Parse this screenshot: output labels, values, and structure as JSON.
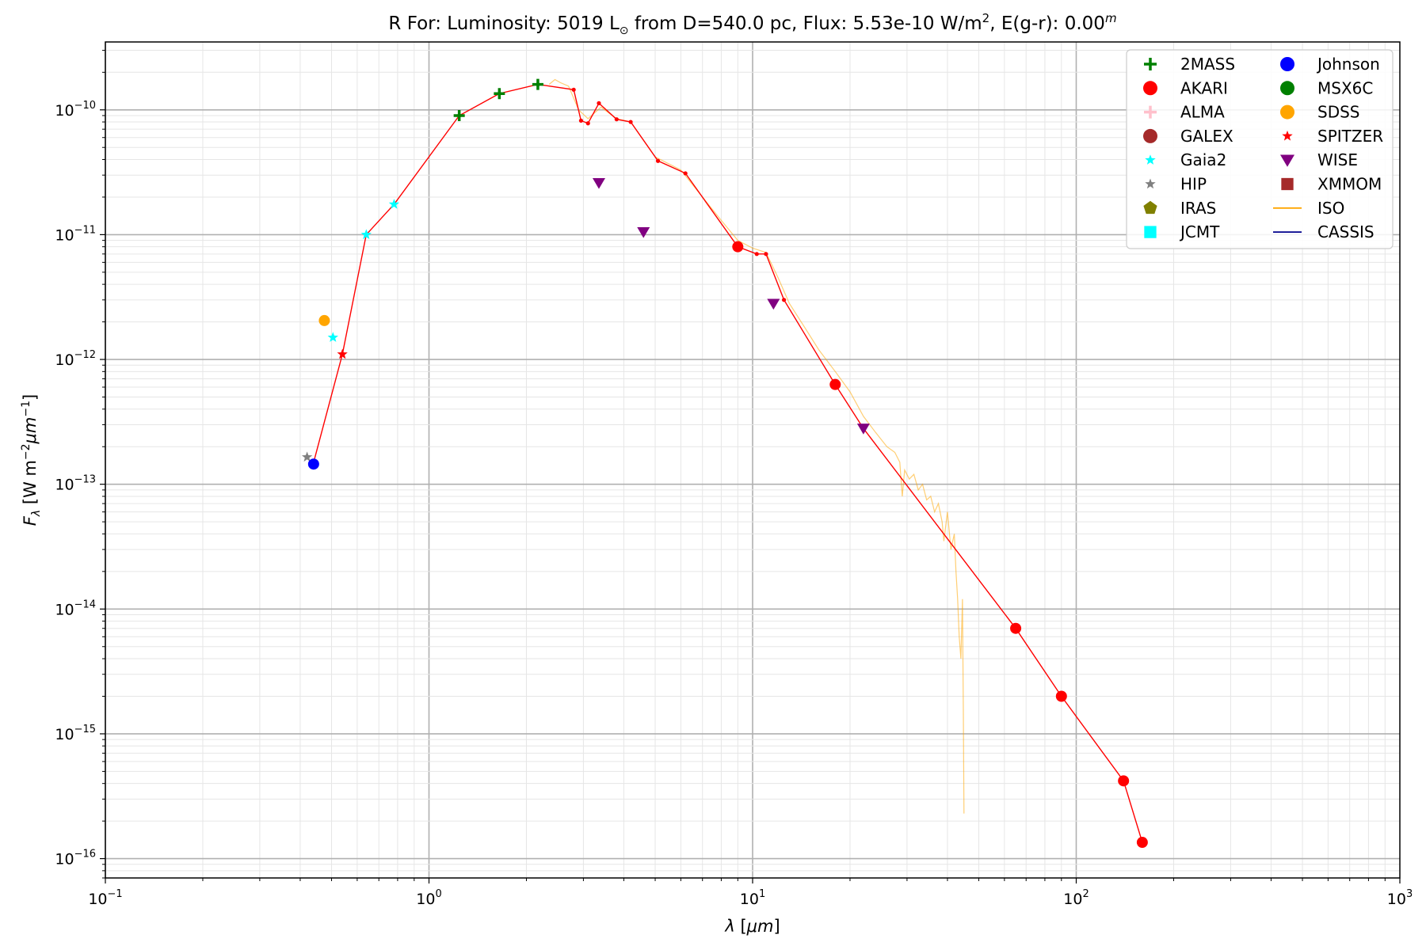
{
  "chart_data": {
    "type": "scatter",
    "title": {
      "prefix": "R For:  Luminosity: 5019 L",
      "sun_symbol": "⊙",
      "middle": " from D=540.0 pc, Flux: 5.53e-10 W/m",
      "flux_exp": "2",
      "suffix": ", E(g-r): 0.00",
      "mag_sup": "m"
    },
    "xlabel": {
      "main": "λ [",
      "unit": "μm",
      "close": "]"
    },
    "ylabel": {
      "main": "F",
      "sub": "λ",
      "unit_a": " [W m",
      "exp_a": "−2",
      "unit_b": "μm",
      "exp_b": "−1",
      "close": "]"
    },
    "x_scale": "log",
    "y_scale": "log",
    "xlim": [
      0.1,
      1000
    ],
    "ylim": [
      7e-17,
      3.5e-10
    ],
    "x_ticks": [
      {
        "value": 0.1,
        "base": "10",
        "exp": "−1"
      },
      {
        "value": 1,
        "base": "10",
        "exp": "0"
      },
      {
        "value": 10,
        "base": "10",
        "exp": "1"
      },
      {
        "value": 100,
        "base": "10",
        "exp": "2"
      },
      {
        "value": 1000,
        "base": "10",
        "exp": "3"
      }
    ],
    "y_ticks": [
      {
        "value": 1e-16,
        "base": "10",
        "exp": "−16"
      },
      {
        "value": 1e-15,
        "base": "10",
        "exp": "−15"
      },
      {
        "value": 1e-14,
        "base": "10",
        "exp": "−14"
      },
      {
        "value": 1e-13,
        "base": "10",
        "exp": "−13"
      },
      {
        "value": 1e-12,
        "base": "10",
        "exp": "−12"
      },
      {
        "value": 1e-11,
        "base": "10",
        "exp": "−11"
      },
      {
        "value": 1e-10,
        "base": "10",
        "exp": "−10"
      }
    ],
    "grid": true,
    "legend_placement": "top-right",
    "legend": [
      {
        "label": "2MASS",
        "marker": "plus",
        "color": "#008000"
      },
      {
        "label": "AKARI",
        "marker": "circle",
        "color": "#ff0000"
      },
      {
        "label": "ALMA",
        "marker": "plus",
        "color": "#ffc0cb"
      },
      {
        "label": "GALEX",
        "marker": "circle",
        "color": "#a52a2a"
      },
      {
        "label": "Gaia2",
        "marker": "star",
        "color": "#00ffff"
      },
      {
        "label": "HIP",
        "marker": "star",
        "color": "#808080"
      },
      {
        "label": "IRAS",
        "marker": "pentagon",
        "color": "#808000"
      },
      {
        "label": "JCMT",
        "marker": "square",
        "color": "#00ffff"
      },
      {
        "label": "Johnson",
        "marker": "circle",
        "color": "#0000ff"
      },
      {
        "label": "MSX6C",
        "marker": "circle",
        "color": "#008000"
      },
      {
        "label": "SDSS",
        "marker": "circle",
        "color": "#ffa500"
      },
      {
        "label": "SPITZER",
        "marker": "star",
        "color": "#ff0000"
      },
      {
        "label": "WISE",
        "marker": "triangle-down",
        "color": "#800080"
      },
      {
        "label": "XMMOM",
        "marker": "square",
        "color": "#a52a2a"
      },
      {
        "label": "ISO",
        "marker": "line",
        "color": "#ffa500"
      },
      {
        "label": "CASSIS",
        "marker": "line",
        "color": "#00008b"
      }
    ],
    "model": {
      "color": "#ff0000",
      "points": [
        [
          0.44,
          1.5e-13
        ],
        [
          0.54,
          1.1e-12
        ],
        [
          0.64,
          1e-11
        ],
        [
          0.78,
          1.75e-11
        ],
        [
          1.24,
          9e-11
        ],
        [
          1.65,
          1.35e-10
        ],
        [
          2.17,
          1.6e-10
        ],
        [
          2.8,
          1.45e-10
        ],
        [
          2.95,
          8.2e-11
        ],
        [
          3.1,
          7.8e-11
        ],
        [
          3.35,
          1.13e-10
        ],
        [
          3.8,
          8.4e-11
        ],
        [
          4.2,
          8e-11
        ],
        [
          5.1,
          3.9e-11
        ],
        [
          6.2,
          3.1e-11
        ],
        [
          9.0,
          8e-12
        ],
        [
          10.3,
          7e-12
        ],
        [
          11.0,
          7e-12
        ],
        [
          12.5,
          3e-12
        ],
        [
          18.0,
          6.3e-13
        ],
        [
          22.0,
          2.8e-13
        ],
        [
          65.0,
          7e-15
        ],
        [
          90.0,
          2e-15
        ],
        [
          140.0,
          4.2e-16
        ],
        [
          160.0,
          1.35e-16
        ]
      ]
    },
    "series": [
      {
        "name": "2MASS",
        "marker": "plus",
        "color": "#008000",
        "points": [
          [
            1.24,
            9e-11
          ],
          [
            1.65,
            1.35e-10
          ],
          [
            2.17,
            1.6e-10
          ]
        ]
      },
      {
        "name": "AKARI",
        "marker": "circle",
        "color": "#ff0000",
        "points": [
          [
            9.0,
            8e-12
          ],
          [
            18.0,
            6.3e-13
          ],
          [
            65.0,
            7e-15
          ],
          [
            90.0,
            2e-15
          ],
          [
            140.0,
            4.2e-16
          ],
          [
            160.0,
            1.35e-16
          ]
        ]
      },
      {
        "name": "Gaia2",
        "marker": "star",
        "color": "#00ffff",
        "points": [
          [
            0.505,
            1.5e-12
          ],
          [
            0.64,
            1e-11
          ],
          [
            0.78,
            1.75e-11
          ]
        ]
      },
      {
        "name": "HIP",
        "marker": "star",
        "color": "#808080",
        "points": [
          [
            0.42,
            1.65e-13
          ]
        ]
      },
      {
        "name": "Johnson",
        "marker": "circle",
        "color": "#0000ff",
        "points": [
          [
            0.44,
            1.45e-13
          ]
        ]
      },
      {
        "name": "SDSS",
        "marker": "circle",
        "color": "#ffa500",
        "points": [
          [
            0.475,
            2.05e-12
          ]
        ]
      },
      {
        "name": "SPITZER",
        "marker": "star",
        "color": "#ff0000",
        "points": [
          [
            0.54,
            1.1e-12
          ]
        ]
      },
      {
        "name": "WISE",
        "marker": "triangle-down",
        "color": "#800080",
        "points": [
          [
            3.35,
            2.6e-11
          ],
          [
            4.6,
            1.05e-11
          ],
          [
            11.6,
            2.8e-12
          ],
          [
            22.0,
            2.8e-13
          ]
        ]
      }
    ],
    "iso": {
      "name": "ISO",
      "color": "#ffa500",
      "points": [
        [
          2.35,
          1.6e-10
        ],
        [
          2.45,
          1.75e-10
        ],
        [
          2.55,
          1.65e-10
        ],
        [
          2.7,
          1.55e-10
        ],
        [
          2.9,
          1e-10
        ],
        [
          3.1,
          8.5e-11
        ],
        [
          3.4,
          1.05e-10
        ],
        [
          3.8,
          8.5e-11
        ],
        [
          4.2,
          8e-11
        ],
        [
          5.0,
          4.2e-11
        ],
        [
          6.0,
          3.3e-11
        ],
        [
          7.0,
          2e-11
        ],
        [
          8.0,
          1.3e-11
        ],
        [
          9.0,
          9e-12
        ],
        [
          10.0,
          7.8e-12
        ],
        [
          11.0,
          7.2e-12
        ],
        [
          12.0,
          4.5e-12
        ],
        [
          13.0,
          2.8e-12
        ],
        [
          14.5,
          1.8e-12
        ],
        [
          16.0,
          1.2e-12
        ],
        [
          18.0,
          8e-13
        ],
        [
          20.0,
          5.5e-13
        ],
        [
          22.0,
          3.5e-13
        ],
        [
          24.0,
          2.6e-13
        ],
        [
          26.0,
          2e-13
        ],
        [
          27.5,
          1.8e-13
        ],
        [
          28.5,
          1.5e-13
        ],
        [
          29.0,
          8e-14
        ],
        [
          29.5,
          1.3e-13
        ],
        [
          30.5,
          1.1e-13
        ],
        [
          31.5,
          1.2e-13
        ],
        [
          32.5,
          9e-14
        ],
        [
          33.5,
          1e-13
        ],
        [
          34.5,
          7.5e-14
        ],
        [
          35.5,
          8e-14
        ],
        [
          36.5,
          6e-14
        ],
        [
          37.5,
          7e-14
        ],
        [
          38.5,
          5e-14
        ],
        [
          39.0,
          3.5e-14
        ],
        [
          40.0,
          6e-14
        ],
        [
          41.0,
          3e-14
        ],
        [
          42.0,
          4e-14
        ],
        [
          42.5,
          2e-14
        ],
        [
          43.0,
          1.2e-14
        ],
        [
          43.5,
          6e-15
        ],
        [
          44.0,
          4e-15
        ],
        [
          44.5,
          1.2e-14
        ],
        [
          44.8,
          1.5e-15
        ],
        [
          45.0,
          2.3e-16
        ]
      ]
    }
  }
}
